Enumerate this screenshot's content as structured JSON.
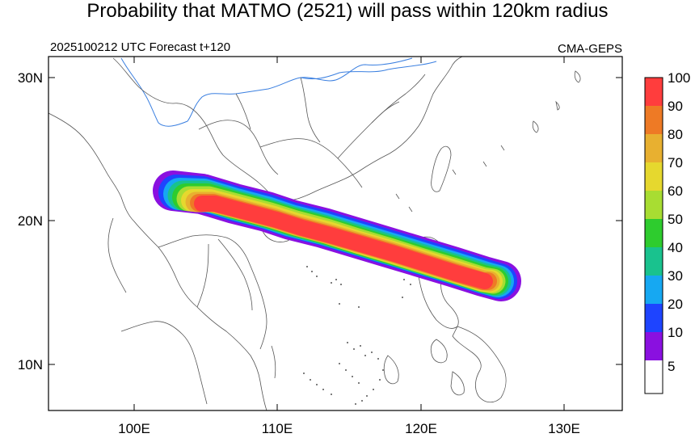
{
  "title": "Probability that MATMO (2521) will pass within 120km radius",
  "subtitle_left": "2025100212 UTC Forecast t+120",
  "subtitle_right": "CMA-GEPS",
  "map": {
    "lon_range": [
      94,
      134
    ],
    "lat_range": [
      7,
      31
    ],
    "x_ticks": [
      "100E",
      "110E",
      "120E",
      "130E"
    ],
    "y_ticks": [
      "30N",
      "20N",
      "10N"
    ]
  },
  "colorbar": {
    "levels": [
      "100",
      "90",
      "80",
      "70",
      "60",
      "50",
      "40",
      "30",
      "20",
      "10",
      "5"
    ],
    "colors": [
      "#ff3d3d",
      "#ee7a25",
      "#e8b030",
      "#e6d82e",
      "#a8dd32",
      "#2ecc2e",
      "#19c28e",
      "#16a8f2",
      "#1e44ff",
      "#8a10e0",
      "#ffffff"
    ]
  },
  "chart_data": {
    "type": "map",
    "field": "strike probability (%) within 120km",
    "track_centerline": [
      {
        "lon": 105.0,
        "lat": 21.6
      },
      {
        "lon": 110.0,
        "lat": 19.6
      },
      {
        "lon": 115.0,
        "lat": 18.6
      },
      {
        "lon": 120.0,
        "lat": 17.3
      },
      {
        "lon": 125.5,
        "lat": 15.6
      }
    ]
  }
}
